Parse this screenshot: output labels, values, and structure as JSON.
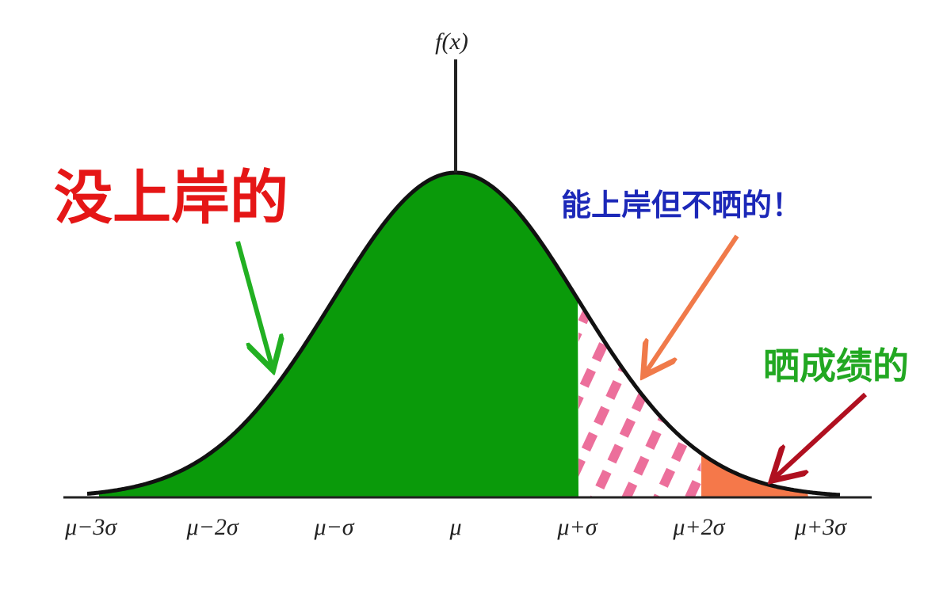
{
  "axis_title": "f(x)",
  "annotations": {
    "left": "没上岸的",
    "middle": "能上岸但不晒的！",
    "right": "晒成绩的"
  },
  "x_labels": [
    "μ−3σ",
    "μ−2σ",
    "μ−σ",
    "μ",
    "μ+σ",
    "μ+2σ",
    "μ+3σ"
  ]
}
